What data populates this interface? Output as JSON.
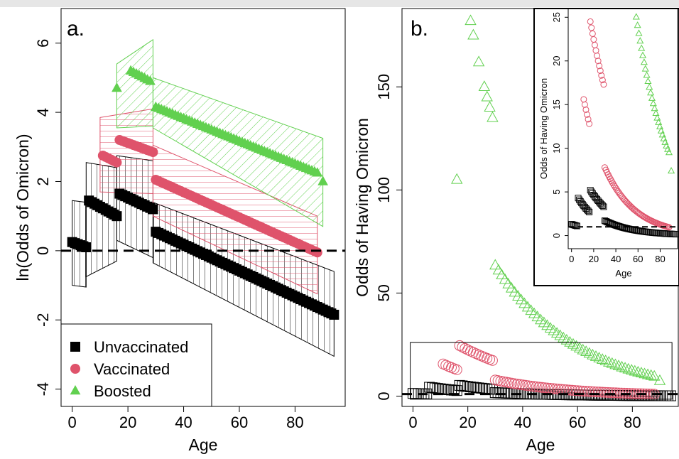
{
  "colors": {
    "unvaccinated": "#000000",
    "vaccinated": "#DF536B",
    "boosted": "#61D04F",
    "topbar": "#e6e6e6"
  },
  "panel_a": {
    "label": "a.",
    "xlabel": "Age",
    "ylabel": "ln(Odds of Omicron)",
    "xticks": [
      "0",
      "20",
      "40",
      "60",
      "80"
    ],
    "yticks": [
      "-4",
      "-2",
      "0",
      "2",
      "4",
      "6"
    ],
    "legend": [
      {
        "label": "Unvaccinated",
        "marker": "square"
      },
      {
        "label": "Vaccinated",
        "marker": "circle"
      },
      {
        "label": "Boosted",
        "marker": "triangle"
      }
    ]
  },
  "panel_b": {
    "label": "b.",
    "xlabel": "Age",
    "ylabel": "Odds of Having Omicron",
    "xticks": [
      "0",
      "20",
      "40",
      "60",
      "80"
    ],
    "yticks": [
      "0",
      "50",
      "100",
      "150"
    ],
    "inset": {
      "xlabel": "Age",
      "ylabel": "Odds of Having Omicron",
      "xticks": [
        "0",
        "20",
        "40",
        "60",
        "80"
      ],
      "yticks": [
        "0",
        "5",
        "10",
        "15",
        "20",
        "25"
      ]
    }
  },
  "chart_data": [
    {
      "type": "scatter",
      "title": "a.",
      "xlabel": "Age",
      "ylabel": "ln(Odds of Omicron)",
      "xlim": [
        -4,
        98
      ],
      "ylim": [
        -4.5,
        7.0
      ],
      "reference_line": {
        "y": 0,
        "style": "dashed"
      },
      "legend_position": "bottom-left",
      "series": [
        {
          "name": "Unvaccinated",
          "marker": "square",
          "segments": [
            {
              "x": [
                0,
                5
              ],
              "y": [
                0.25,
                0.1
              ]
            },
            {
              "x": [
                6,
                16
              ],
              "y": [
                1.45,
                1.0
              ]
            },
            {
              "x": [
                17,
                29
              ],
              "y": [
                1.65,
                1.2
              ]
            },
            {
              "x": [
                30,
                94
              ],
              "y": [
                0.55,
                -1.85
              ]
            }
          ],
          "ci_band": [
            {
              "x": [
                0,
                5
              ],
              "lower": [
                -1.0,
                -1.05
              ],
              "upper": [
                1.45,
                1.4
              ]
            },
            {
              "x": [
                5,
                16
              ],
              "lower": [
                -0.75,
                -0.3
              ],
              "upper": [
                2.55,
                2.4
              ]
            },
            {
              "x": [
                16,
                29
              ],
              "lower": [
                0.3,
                -0.2
              ],
              "upper": [
                2.75,
                2.6
              ]
            },
            {
              "x": [
                29,
                94
              ],
              "lower": [
                -0.35,
                -3.05
              ],
              "upper": [
                1.4,
                -0.6
              ]
            }
          ]
        },
        {
          "name": "Vaccinated",
          "marker": "circle",
          "segments": [
            {
              "x": [
                11,
                16
              ],
              "y": [
                2.75,
                2.55
              ]
            },
            {
              "x": [
                17,
                29
              ],
              "y": [
                3.2,
                2.85
              ]
            },
            {
              "x": [
                30,
                88
              ],
              "y": [
                2.05,
                -0.05
              ]
            }
          ],
          "ci_band": [
            {
              "x": [
                10,
                29
              ],
              "lower": [
                1.7,
                1.65
              ],
              "upper": [
                3.85,
                4.1
              ]
            },
            {
              "x": [
                29,
                88
              ],
              "lower": [
                1.0,
                -1.25
              ],
              "upper": [
                3.05,
                1.0
              ]
            }
          ]
        },
        {
          "name": "Boosted",
          "marker": "triangle",
          "segments": [
            {
              "x": [
                16,
                16
              ],
              "y": [
                4.7,
                4.7
              ]
            },
            {
              "x": [
                21,
                28
              ],
              "y": [
                5.2,
                4.9
              ]
            },
            {
              "x": [
                30,
                88
              ],
              "y": [
                4.15,
                2.25
              ]
            },
            {
              "x": [
                90,
                90
              ],
              "y": [
                2.0,
                2.0
              ]
            }
          ],
          "ci_band": [
            {
              "x": [
                16,
                29
              ],
              "lower": [
                3.55,
                3.6
              ],
              "upper": [
                5.4,
                6.1
              ]
            },
            {
              "x": [
                29,
                90
              ],
              "lower": [
                3.55,
                0.7
              ],
              "upper": [
                5.0,
                3.25
              ]
            }
          ]
        }
      ]
    },
    {
      "type": "scatter",
      "title": "b.",
      "xlabel": "Age",
      "ylabel": "Odds of Having Omicron",
      "xlim": [
        -4,
        97
      ],
      "ylim": [
        -5,
        188
      ],
      "reference_line": {
        "y": 1,
        "style": "dashed"
      },
      "series": [
        {
          "name": "Unvaccinated",
          "marker": "square-open",
          "x": [
            0,
            5,
            6,
            16,
            17,
            29,
            30,
            94
          ],
          "y": [
            1.3,
            1.1,
            4.3,
            2.7,
            5.2,
            3.3,
            1.7,
            0.16
          ]
        },
        {
          "name": "Vaccinated",
          "marker": "circle-open",
          "x": [
            11,
            16,
            17,
            29,
            30,
            88
          ],
          "y": [
            15.6,
            12.8,
            24.5,
            17.3,
            7.8,
            0.95
          ]
        },
        {
          "name": "Boosted",
          "marker": "triangle-open",
          "x": [
            16,
            21,
            22,
            24,
            26,
            27,
            28,
            29,
            30,
            88,
            90
          ],
          "y": [
            105,
            182,
            175,
            162,
            150,
            145,
            140,
            135,
            63.4,
            9.5,
            7.4
          ]
        }
      ],
      "inset": {
        "xlim": [
          -3,
          97
        ],
        "ylim": [
          -1.5,
          26
        ],
        "xlabel": "Age",
        "ylabel": "Odds of Having Omicron"
      }
    }
  ]
}
